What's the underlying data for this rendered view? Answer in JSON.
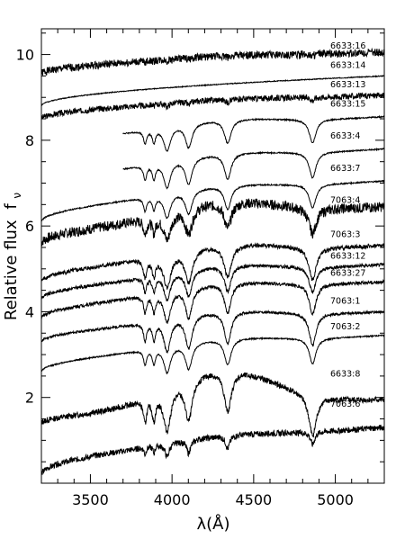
{
  "chart_data": {
    "type": "line",
    "title": "",
    "xlabel": "λ(Å)",
    "ylabel": "Relative flux",
    "ylabel_symbol": "f",
    "ylabel_subscript": "ν",
    "xlim": [
      3200,
      5300
    ],
    "ylim": [
      0,
      10.6
    ],
    "x_ticks": [
      3500,
      4000,
      4500,
      5000
    ],
    "x_tick_labels": [
      "3500",
      "4000",
      "4500",
      "5000"
    ],
    "y_ticks": [
      2,
      4,
      6,
      8,
      10
    ],
    "y_tick_labels": [
      "2",
      "4",
      "6",
      "8",
      "10"
    ],
    "grid": false,
    "legend": "none",
    "line_color": "#000000",
    "absorption_lines_angstrom": [
      3835,
      3889,
      3970,
      4102,
      4341,
      4861
    ],
    "series": [
      {
        "name": "6633:16",
        "label_y": 10.2,
        "x_start": 3200,
        "start": 9.55,
        "end": 10.05,
        "noise": 0.09,
        "depth": 0.04,
        "width": 10,
        "hump": 0.05
      },
      {
        "name": "6633:14",
        "label_y": 9.75,
        "x_start": 3200,
        "start": 8.8,
        "end": 9.5,
        "noise": 0.01,
        "depth": 0.0,
        "width": 10,
        "hump": 0.0
      },
      {
        "name": "6633:13",
        "label_y": 9.3,
        "x_start": 3200,
        "start": 8.5,
        "end": 9.05,
        "noise": 0.07,
        "depth": 0.08,
        "width": 12,
        "hump": 0.05
      },
      {
        "name": "6633:15",
        "label_y": 8.85,
        "x_start": 3700,
        "start": 7.75,
        "end": 8.55,
        "noise": 0.015,
        "depth": 0.55,
        "width": 25,
        "hump": 0.15
      },
      {
        "name": "6633:4",
        "label_y": 8.1,
        "x_start": 3700,
        "start": 6.85,
        "end": 7.8,
        "noise": 0.015,
        "depth": 0.6,
        "width": 25,
        "hump": 0.15
      },
      {
        "name": "6633:7",
        "label_y": 7.35,
        "x_start": 3200,
        "start": 6.1,
        "end": 7.05,
        "noise": 0.015,
        "depth": 0.55,
        "width": 25,
        "hump": 0.15
      },
      {
        "name": "7063:4",
        "label_y": 6.6,
        "x_start": 3200,
        "start": 5.6,
        "end": 6.45,
        "noise": 0.12,
        "depth": 0.6,
        "width": 28,
        "hump": 0.35
      },
      {
        "name": "7063:3",
        "label_y": 5.8,
        "x_start": 3200,
        "start": 4.7,
        "end": 5.55,
        "noise": 0.05,
        "depth": 0.75,
        "width": 28,
        "hump": 0.25
      },
      {
        "name": "6633:12",
        "label_y": 5.3,
        "x_start": 3200,
        "start": 4.3,
        "end": 5.1,
        "noise": 0.04,
        "depth": 0.6,
        "width": 25,
        "hump": 0.2
      },
      {
        "name": "6633:27",
        "label_y": 4.9,
        "x_start": 3200,
        "start": 3.85,
        "end": 4.7,
        "noise": 0.04,
        "depth": 0.7,
        "width": 25,
        "hump": 0.2
      },
      {
        "name": "7063:1",
        "label_y": 4.25,
        "x_start": 3200,
        "start": 3.3,
        "end": 4.0,
        "noise": 0.03,
        "depth": 0.75,
        "width": 25,
        "hump": 0.2
      },
      {
        "name": "7063:2",
        "label_y": 3.65,
        "x_start": 3200,
        "start": 2.6,
        "end": 3.45,
        "noise": 0.015,
        "depth": 0.6,
        "width": 25,
        "hump": 0.15
      },
      {
        "name": "6633:8",
        "label_y": 2.55,
        "x_start": 3200,
        "start": 1.4,
        "end": 1.95,
        "noise": 0.07,
        "depth": 0.95,
        "width": 28,
        "hump": 0.85
      },
      {
        "name": "7063:6",
        "label_y": 1.85,
        "x_start": 3200,
        "start": 0.2,
        "end": 1.3,
        "noise": 0.07,
        "depth": 0.3,
        "width": 15,
        "hump": 0.1
      }
    ]
  }
}
